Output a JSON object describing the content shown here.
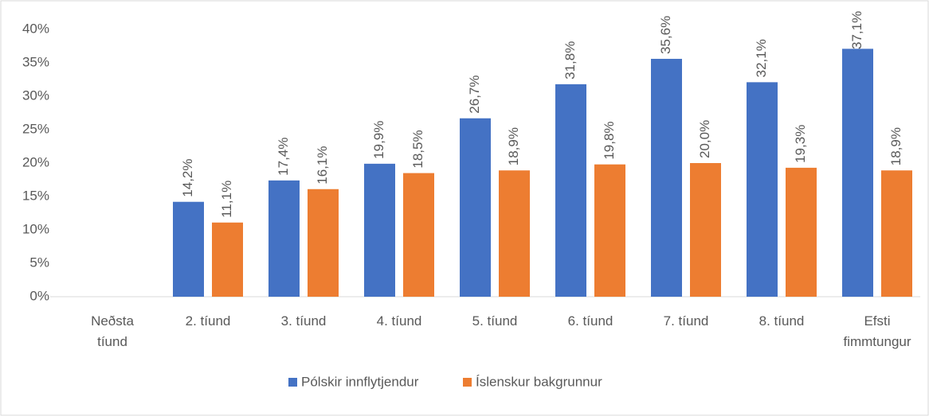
{
  "chart_data": {
    "type": "bar",
    "categories": [
      "Neðsta tíund",
      "2. tíund",
      "3. tíund",
      "4. tíund",
      "5. tíund",
      "6. tíund",
      "7. tíund",
      "8. tíund",
      "Efsti fimmtungur"
    ],
    "series": [
      {
        "name": "Pólskir innflytjendur",
        "color": "#4472c4",
        "values": [
          null,
          14.2,
          17.4,
          19.9,
          26.7,
          31.8,
          35.6,
          32.1,
          37.1
        ],
        "value_labels": [
          null,
          "14,2%",
          "17,4%",
          "19,9%",
          "26,7%",
          "31,8%",
          "35,6%",
          "32,1%",
          "37,1%"
        ]
      },
      {
        "name": "Íslenskur bakgrunnur",
        "color": "#ed7d31",
        "values": [
          null,
          11.1,
          16.1,
          18.5,
          18.9,
          19.8,
          20.0,
          19.3,
          18.9
        ],
        "value_labels": [
          null,
          "11,1%",
          "16,1%",
          "18,5%",
          "18,9%",
          "19,8%",
          "20,0%",
          "19,3%",
          "18,9%"
        ]
      }
    ],
    "ylim": [
      0,
      40
    ],
    "yticks": [
      {
        "value": 0,
        "label": "0%"
      },
      {
        "value": 5,
        "label": "5%"
      },
      {
        "value": 10,
        "label": "10%"
      },
      {
        "value": 15,
        "label": "15%"
      },
      {
        "value": 20,
        "label": "20%"
      },
      {
        "value": 25,
        "label": "25%"
      },
      {
        "value": 30,
        "label": "30%"
      },
      {
        "value": 35,
        "label": "35%"
      },
      {
        "value": 40,
        "label": "40%"
      }
    ],
    "grid": false,
    "legend": "bottom"
  }
}
